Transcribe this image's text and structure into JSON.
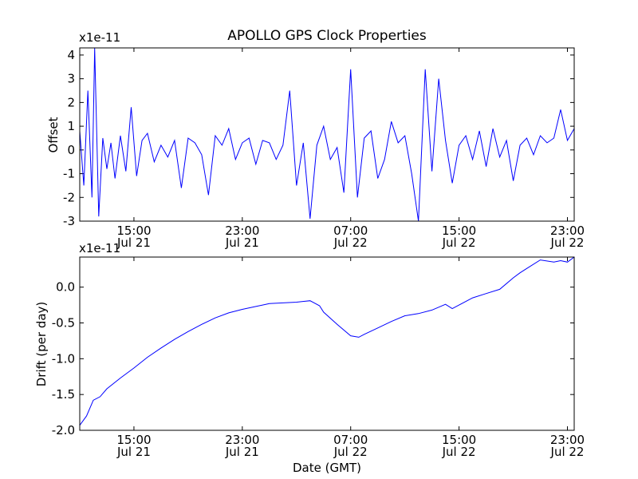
{
  "title": "APOLLO GPS Clock Properties",
  "chart_data": [
    {
      "type": "line",
      "title": "APOLLO GPS Clock Properties",
      "ylabel": "Offset",
      "scale_label": "x1e-11",
      "xlabel": "",
      "ylim": [
        -3,
        4.3
      ],
      "yticks": [
        "-3",
        "-2",
        "-1",
        "0",
        "1",
        "2",
        "3",
        "4"
      ],
      "xlim": [
        "Jul 21 11:00",
        "Jul 22 23:30"
      ],
      "xticks": [
        {
          "time": "15:00",
          "date": "Jul 21"
        },
        {
          "time": "23:00",
          "date": "Jul 21"
        },
        {
          "time": "07:00",
          "date": "Jul 22"
        },
        {
          "time": "15:00",
          "date": "Jul 22"
        },
        {
          "time": "23:00",
          "date": "Jul 22"
        }
      ],
      "color": "#0000ff",
      "grid": false,
      "x_hours": [
        11.0,
        11.3,
        11.6,
        11.9,
        12.1,
        12.4,
        12.7,
        13.0,
        13.3,
        13.6,
        14.0,
        14.4,
        14.8,
        15.2,
        15.6,
        16.0,
        16.5,
        17.0,
        17.5,
        18.0,
        18.5,
        19.0,
        19.5,
        20.0,
        20.5,
        21.0,
        21.5,
        22.0,
        22.5,
        23.0,
        23.5,
        24.0,
        24.5,
        25.0,
        25.5,
        26.0,
        26.5,
        27.0,
        27.5,
        28.0,
        28.5,
        29.0,
        29.5,
        30.0,
        30.5,
        31.0,
        31.5,
        32.0,
        32.5,
        33.0,
        33.5,
        34.0,
        34.5,
        35.0,
        35.5,
        36.0,
        36.5,
        37.0,
        37.5,
        38.0,
        38.5,
        39.0,
        39.5,
        40.0,
        40.5,
        41.0,
        41.5,
        42.0,
        42.5,
        43.0,
        43.5,
        44.0,
        44.5,
        45.0,
        45.5,
        46.0,
        46.5,
        47.0,
        47.5
      ],
      "values": [
        0.8,
        -1.5,
        2.5,
        -2.0,
        4.3,
        -2.8,
        0.5,
        -0.8,
        0.3,
        -1.2,
        0.6,
        -0.9,
        1.8,
        -1.1,
        0.4,
        0.7,
        -0.5,
        0.2,
        -0.3,
        0.4,
        -1.6,
        0.5,
        0.3,
        -0.2,
        -1.9,
        0.6,
        0.2,
        0.9,
        -0.4,
        0.3,
        0.5,
        -0.6,
        0.4,
        0.3,
        -0.4,
        0.2,
        2.5,
        -1.5,
        0.3,
        -2.9,
        0.2,
        1.0,
        -0.4,
        0.1,
        -1.8,
        3.4,
        -2.0,
        0.5,
        0.8,
        -1.2,
        -0.4,
        1.2,
        0.3,
        0.6,
        -1.0,
        -3.0,
        3.4,
        -0.9,
        3.0,
        0.4,
        -1.4,
        0.2,
        0.6,
        -0.4,
        0.8,
        -0.7,
        0.9,
        -0.3,
        0.4,
        -1.3,
        0.2,
        0.5,
        -0.2,
        0.6,
        0.3,
        0.5,
        1.7,
        0.4,
        0.9
      ]
    },
    {
      "type": "line",
      "ylabel": "Drift (per day)",
      "scale_label": "x1e-11",
      "xlabel": "Date (GMT)",
      "ylim": [
        -2.0,
        0.42
      ],
      "yticks": [
        "-2.0",
        "-1.5",
        "-1.0",
        "-0.5",
        "0.0"
      ],
      "xlim": [
        "Jul 21 11:00",
        "Jul 22 23:30"
      ],
      "xticks": [
        {
          "time": "15:00",
          "date": "Jul 21"
        },
        {
          "time": "23:00",
          "date": "Jul 21"
        },
        {
          "time": "07:00",
          "date": "Jul 22"
        },
        {
          "time": "15:00",
          "date": "Jul 22"
        },
        {
          "time": "23:00",
          "date": "Jul 22"
        }
      ],
      "color": "#0000ff",
      "grid": false,
      "x_hours": [
        11.0,
        11.5,
        12.0,
        12.5,
        13.0,
        14.0,
        15.0,
        16.0,
        17.0,
        18.0,
        19.0,
        20.0,
        21.0,
        22.0,
        23.0,
        24.0,
        25.0,
        26.0,
        27.0,
        28.0,
        28.7,
        29.0,
        30.0,
        31.0,
        31.6,
        32.0,
        33.0,
        34.0,
        35.0,
        36.0,
        37.0,
        38.0,
        38.5,
        39.0,
        40.0,
        41.0,
        42.0,
        43.0,
        43.5,
        44.0,
        45.0,
        46.0,
        46.5,
        47.0,
        47.5
      ],
      "values": [
        -1.93,
        -1.8,
        -1.58,
        -1.53,
        -1.42,
        -1.27,
        -1.13,
        -0.98,
        -0.85,
        -0.73,
        -0.62,
        -0.52,
        -0.43,
        -0.36,
        -0.31,
        -0.27,
        -0.23,
        -0.22,
        -0.21,
        -0.19,
        -0.26,
        -0.35,
        -0.52,
        -0.68,
        -0.7,
        -0.66,
        -0.57,
        -0.48,
        -0.4,
        -0.37,
        -0.32,
        -0.24,
        -0.3,
        -0.25,
        -0.15,
        -0.09,
        -0.03,
        0.13,
        0.2,
        0.26,
        0.38,
        0.35,
        0.37,
        0.35,
        0.42
      ]
    }
  ]
}
